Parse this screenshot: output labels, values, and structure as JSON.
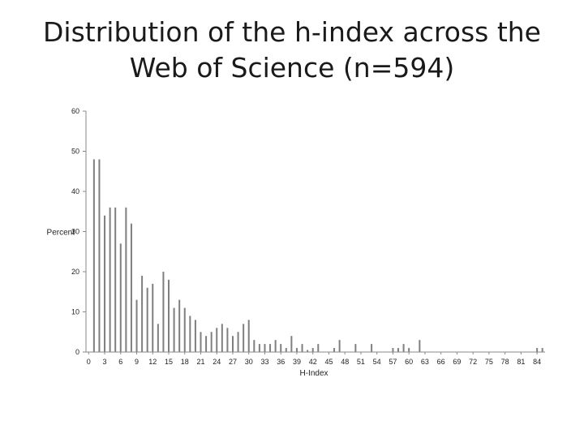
{
  "slide": {
    "title_line1": "Distribution of the h-index across the",
    "title_line2": "Web of Science (n=594)"
  },
  "chart_data": {
    "type": "bar",
    "title": "Distribution of the h-index across the Web of Science (n=594)",
    "xlabel": "H-Index",
    "ylabel": "Percent",
    "ylim": [
      0,
      60
    ],
    "yticks": [
      0,
      10,
      20,
      30,
      40,
      50,
      60
    ],
    "xticks": [
      0,
      3,
      6,
      9,
      12,
      15,
      18,
      21,
      24,
      27,
      30,
      33,
      36,
      39,
      42,
      45,
      48,
      51,
      54,
      57,
      60,
      63,
      66,
      69,
      72,
      75,
      78,
      81,
      84
    ],
    "grid": false,
    "bar_color": "#7f7f7f",
    "h_index": [
      1,
      2,
      3,
      4,
      5,
      6,
      7,
      8,
      9,
      10,
      11,
      12,
      13,
      14,
      15,
      16,
      17,
      18,
      19,
      20,
      21,
      22,
      23,
      24,
      25,
      26,
      27,
      28,
      29,
      30,
      31,
      32,
      33,
      34,
      35,
      36,
      37,
      38,
      39,
      40,
      41,
      42,
      43,
      46,
      47,
      50,
      53,
      57,
      58,
      59,
      60,
      62,
      84,
      85
    ],
    "percent": [
      48,
      48,
      34,
      36,
      36,
      27,
      36,
      32,
      13,
      19,
      16,
      17,
      7,
      20,
      18,
      11,
      13,
      11,
      9,
      8,
      5,
      4,
      5,
      6,
      7,
      6,
      4,
      5,
      7,
      8,
      3,
      2,
      2,
      2,
      3,
      2,
      1,
      4,
      1,
      2,
      0.5,
      1,
      2,
      1,
      3,
      2,
      2,
      1,
      1,
      2,
      1,
      3,
      1,
      1
    ]
  }
}
